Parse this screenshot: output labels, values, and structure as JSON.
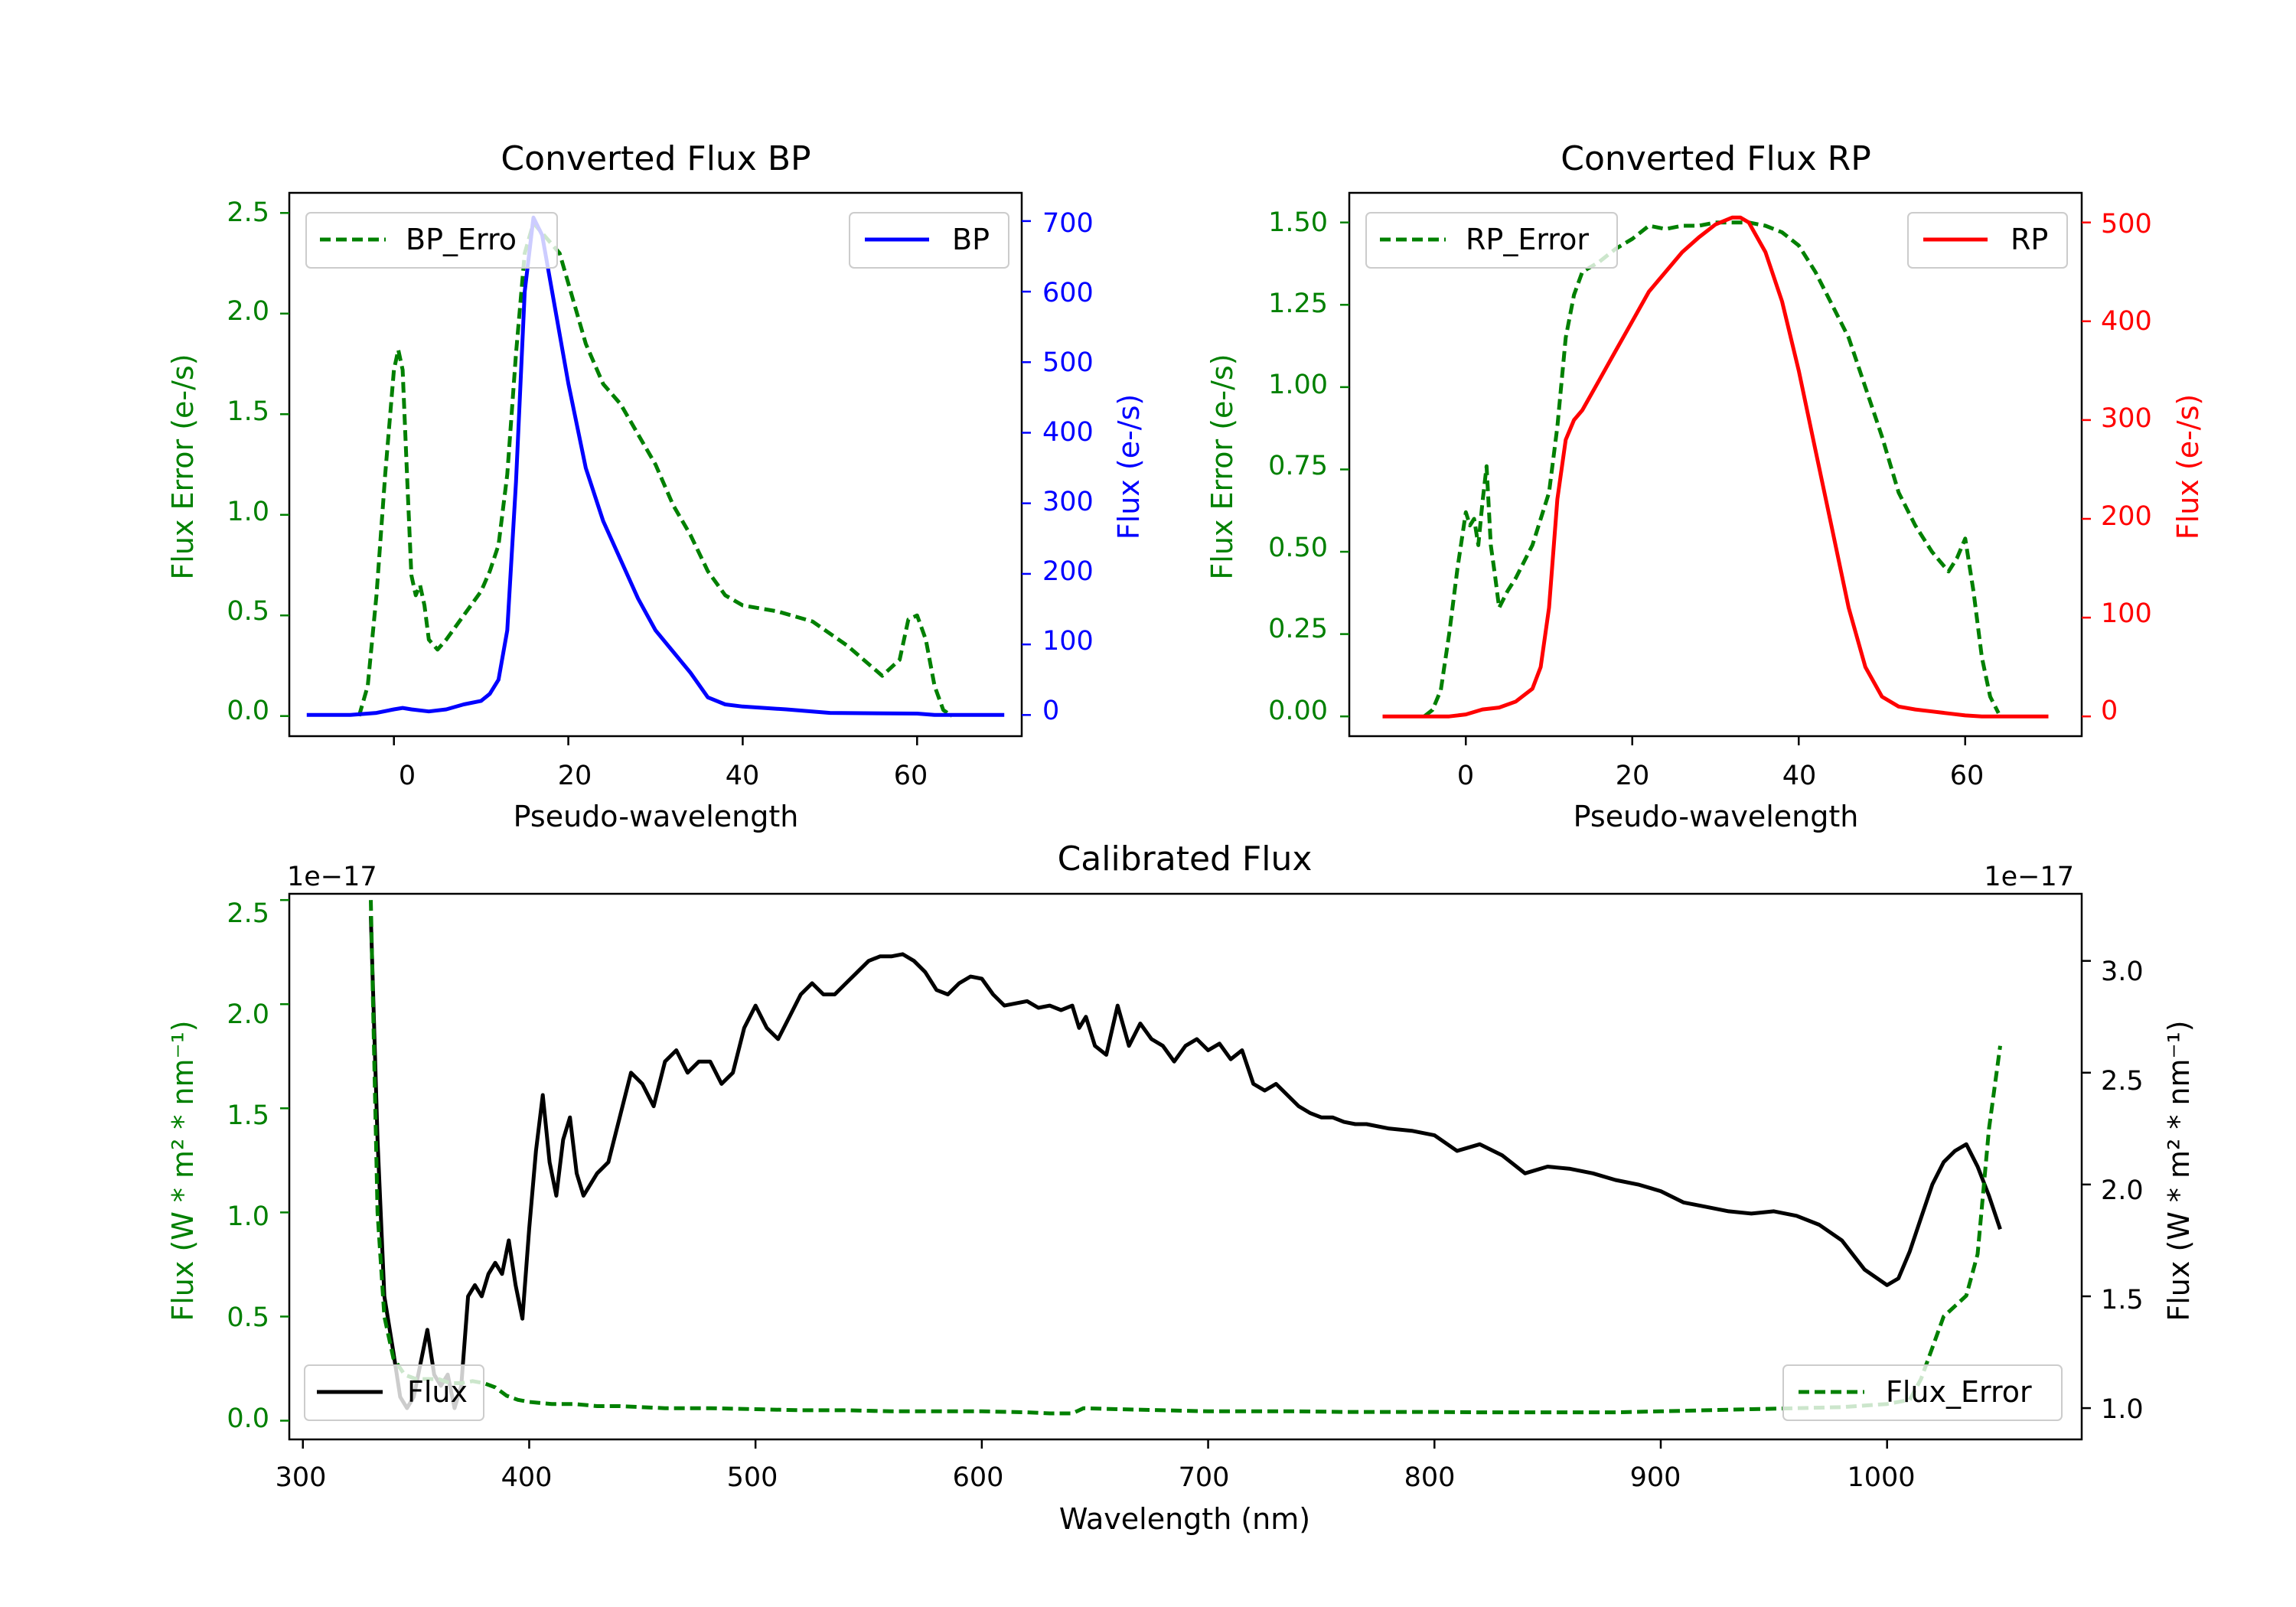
{
  "chart_data": [
    {
      "type": "line",
      "title": "Converted Flux BP",
      "xlabel": "Pseudo-wavelength",
      "ylabel_left": "Flux Error (e-/s)",
      "ylabel_right": "Flux (e-/s)",
      "xlim": [
        -12,
        72
      ],
      "ylim_left": [
        -0.1,
        2.6
      ],
      "ylim_right": [
        -30,
        740
      ],
      "xticks": [
        "0",
        "20",
        "40",
        "60"
      ],
      "yticks_left": [
        "0.0",
        "0.5",
        "1.0",
        "1.5",
        "2.0",
        "2.5"
      ],
      "yticks_right": [
        "0",
        "100",
        "200",
        "300",
        "400",
        "500",
        "600",
        "700"
      ],
      "colors": {
        "error": "#008000",
        "flux": "#0000ff",
        "axis_left": "#008000",
        "axis_right": "#0000ff"
      },
      "series": [
        {
          "name": "BP_Error",
          "axis": "left",
          "style": "dashed",
          "color": "#008000",
          "x": [
            -4,
            -3,
            -2,
            -1,
            0,
            0.5,
            1,
            1.5,
            2,
            2.5,
            3,
            3.5,
            4,
            5,
            6,
            8,
            10,
            11,
            12,
            13,
            14,
            15,
            16,
            17,
            18,
            19,
            20,
            22,
            24,
            26,
            28,
            30,
            32,
            34,
            36,
            38,
            40,
            44,
            48,
            52,
            56,
            58,
            59,
            60,
            61,
            62,
            63,
            64
          ],
          "y": [
            0.0,
            0.15,
            0.6,
            1.2,
            1.72,
            1.82,
            1.72,
            1.2,
            0.7,
            0.6,
            0.65,
            0.55,
            0.38,
            0.33,
            0.38,
            0.5,
            0.62,
            0.72,
            0.85,
            1.2,
            1.8,
            2.3,
            2.45,
            2.4,
            2.35,
            2.3,
            2.15,
            1.85,
            1.65,
            1.55,
            1.4,
            1.25,
            1.05,
            0.9,
            0.72,
            0.6,
            0.55,
            0.52,
            0.47,
            0.35,
            0.2,
            0.28,
            0.48,
            0.5,
            0.38,
            0.15,
            0.03,
            0.0
          ]
        },
        {
          "name": "BP",
          "axis": "right",
          "style": "solid",
          "color": "#0000ff",
          "x": [
            -10,
            -5,
            -2,
            0,
            1,
            2,
            4,
            6,
            8,
            10,
            11,
            12,
            13,
            14,
            15,
            16,
            17,
            18,
            20,
            22,
            24,
            26,
            28,
            30,
            32,
            34,
            36,
            38,
            40,
            45,
            50,
            60,
            62,
            64,
            66,
            70
          ],
          "y": [
            0,
            0,
            3,
            8,
            10,
            8,
            5,
            8,
            15,
            20,
            30,
            50,
            120,
            330,
            600,
            705,
            680,
            610,
            470,
            350,
            275,
            220,
            165,
            120,
            90,
            60,
            25,
            15,
            12,
            8,
            3,
            2,
            0,
            0,
            0,
            0
          ]
        }
      ],
      "legend": [
        {
          "label": "BP_Erro",
          "position": "upper-left"
        },
        {
          "label": "BP",
          "position": "upper-right"
        }
      ]
    },
    {
      "type": "line",
      "title": "Converted Flux RP",
      "xlabel": "Pseudo-wavelength",
      "ylabel_left": "Flux Error (e-/s)",
      "ylabel_right": "Flux (e-/s)",
      "xlim": [
        -14,
        74
      ],
      "ylim_left": [
        -0.06,
        1.59
      ],
      "ylim_right": [
        -20,
        530
      ],
      "xticks": [
        "0",
        "20",
        "40",
        "60"
      ],
      "yticks_left": [
        "0.00",
        "0.25",
        "0.50",
        "0.75",
        "1.00",
        "1.25",
        "1.50"
      ],
      "yticks_right": [
        "0",
        "100",
        "200",
        "300",
        "400",
        "500"
      ],
      "colors": {
        "error": "#008000",
        "flux": "#ff0000",
        "axis_left": "#008000",
        "axis_right": "#ff0000"
      },
      "series": [
        {
          "name": "RP_Error",
          "axis": "left",
          "style": "dashed",
          "color": "#008000",
          "x": [
            -5,
            -4,
            -3,
            -2,
            -1,
            0,
            0.5,
            1,
            1.5,
            2,
            2.5,
            3,
            3.5,
            4,
            5,
            6,
            8,
            10,
            11,
            12,
            13,
            14,
            16,
            18,
            20,
            22,
            24,
            26,
            28,
            30,
            32,
            34,
            36,
            38,
            40,
            42,
            44,
            46,
            48,
            50,
            52,
            54,
            56,
            57,
            58,
            59,
            60,
            61,
            62,
            63,
            64
          ],
          "y": [
            0.0,
            0.02,
            0.08,
            0.25,
            0.45,
            0.62,
            0.58,
            0.6,
            0.52,
            0.65,
            0.76,
            0.52,
            0.43,
            0.33,
            0.38,
            0.42,
            0.52,
            0.68,
            0.88,
            1.15,
            1.28,
            1.35,
            1.38,
            1.42,
            1.45,
            1.49,
            1.48,
            1.49,
            1.49,
            1.5,
            1.5,
            1.5,
            1.49,
            1.47,
            1.43,
            1.35,
            1.25,
            1.15,
            1.0,
            0.85,
            0.68,
            0.58,
            0.5,
            0.47,
            0.44,
            0.48,
            0.54,
            0.38,
            0.18,
            0.06,
            0.01
          ]
        },
        {
          "name": "RP",
          "axis": "right",
          "style": "solid",
          "color": "#ff0000",
          "x": [
            -10,
            -4,
            -2,
            0,
            2,
            4,
            6,
            8,
            9,
            10,
            11,
            12,
            13,
            14,
            16,
            18,
            20,
            22,
            24,
            26,
            28,
            30,
            32,
            33,
            34,
            36,
            38,
            40,
            42,
            44,
            46,
            48,
            50,
            52,
            54,
            56,
            58,
            60,
            62,
            64,
            66,
            70
          ],
          "y": [
            0,
            0,
            0,
            2,
            7,
            9,
            15,
            28,
            50,
            110,
            220,
            280,
            300,
            310,
            340,
            370,
            400,
            430,
            450,
            470,
            485,
            498,
            505,
            505,
            500,
            470,
            420,
            350,
            270,
            190,
            110,
            50,
            20,
            10,
            7,
            5,
            3,
            1,
            0,
            0,
            0,
            0
          ]
        }
      ],
      "legend": [
        {
          "label": "RP_Error",
          "position": "upper-left"
        },
        {
          "label": "RP",
          "position": "upper-right"
        }
      ]
    },
    {
      "type": "line",
      "title": "Calibrated Flux",
      "xlabel": "Wavelength (nm)",
      "ylabel_left": "Flux (W * m² * nm⁻¹)",
      "ylabel_right": "Flux (W * m² * nm⁻¹)",
      "offset_left": "1e−17",
      "offset_right": "1e−17",
      "xlim": [
        294,
        1086
      ],
      "ylim_left": [
        -0.09,
        2.53
      ],
      "ylim_right": [
        0.86,
        3.3
      ],
      "xticks": [
        "300",
        "400",
        "500",
        "600",
        "700",
        "800",
        "900",
        "1000"
      ],
      "yticks_left": [
        "0.0",
        "0.5",
        "1.0",
        "1.5",
        "2.0",
        "2.5"
      ],
      "yticks_right": [
        "1.0",
        "1.5",
        "2.0",
        "2.5",
        "3.0"
      ],
      "colors": {
        "error": "#008000",
        "flux": "#000000",
        "axis_left": "#008000",
        "axis_right": "#000000"
      },
      "series": [
        {
          "name": "Flux",
          "axis": "right",
          "style": "solid",
          "color": "#000000",
          "x": [
            330,
            333,
            336,
            340,
            343,
            346,
            349,
            352,
            355,
            358,
            361,
            364,
            367,
            370,
            373,
            376,
            379,
            382,
            385,
            388,
            391,
            394,
            397,
            400,
            403,
            406,
            409,
            412,
            415,
            418,
            421,
            424,
            427,
            430,
            435,
            440,
            445,
            450,
            455,
            460,
            465,
            470,
            475,
            480,
            485,
            490,
            495,
            500,
            505,
            510,
            515,
            520,
            525,
            530,
            535,
            540,
            545,
            550,
            555,
            560,
            565,
            570,
            575,
            580,
            585,
            590,
            595,
            600,
            605,
            610,
            615,
            620,
            625,
            630,
            635,
            640,
            643,
            646,
            650,
            655,
            660,
            665,
            670,
            675,
            680,
            685,
            690,
            695,
            700,
            705,
            710,
            715,
            720,
            725,
            730,
            735,
            740,
            745,
            750,
            755,
            760,
            765,
            770,
            780,
            790,
            800,
            810,
            820,
            830,
            840,
            850,
            860,
            870,
            880,
            890,
            900,
            910,
            920,
            930,
            940,
            950,
            960,
            970,
            980,
            990,
            1000,
            1005,
            1010,
            1015,
            1020,
            1025,
            1030,
            1035,
            1040,
            1045,
            1050
          ],
          "y": [
            3.2,
            2.2,
            1.5,
            1.25,
            1.05,
            1.0,
            1.05,
            1.2,
            1.35,
            1.15,
            1.1,
            1.15,
            1.0,
            1.1,
            1.5,
            1.55,
            1.5,
            1.6,
            1.65,
            1.6,
            1.75,
            1.55,
            1.4,
            1.8,
            2.15,
            2.4,
            2.1,
            1.95,
            2.2,
            2.3,
            2.05,
            1.95,
            2.0,
            2.05,
            2.1,
            2.3,
            2.5,
            2.45,
            2.35,
            2.55,
            2.6,
            2.5,
            2.55,
            2.55,
            2.45,
            2.5,
            2.7,
            2.8,
            2.7,
            2.65,
            2.75,
            2.85,
            2.9,
            2.85,
            2.85,
            2.9,
            2.95,
            3.0,
            3.02,
            3.02,
            3.03,
            3.0,
            2.95,
            2.87,
            2.85,
            2.9,
            2.93,
            2.92,
            2.85,
            2.8,
            2.81,
            2.82,
            2.79,
            2.8,
            2.78,
            2.8,
            2.7,
            2.75,
            2.62,
            2.58,
            2.8,
            2.62,
            2.72,
            2.65,
            2.62,
            2.55,
            2.62,
            2.65,
            2.6,
            2.63,
            2.56,
            2.6,
            2.45,
            2.42,
            2.45,
            2.4,
            2.35,
            2.32,
            2.3,
            2.3,
            2.28,
            2.27,
            2.27,
            2.25,
            2.24,
            2.22,
            2.15,
            2.18,
            2.13,
            2.05,
            2.08,
            2.07,
            2.05,
            2.02,
            2.0,
            1.97,
            1.92,
            1.9,
            1.88,
            1.87,
            1.88,
            1.86,
            1.82,
            1.75,
            1.62,
            1.55,
            1.58,
            1.7,
            1.85,
            2.0,
            2.1,
            2.15,
            2.18,
            2.08,
            1.95,
            1.8
          ]
        },
        {
          "name": "Flux_Error",
          "axis": "left",
          "style": "dashed",
          "color": "#008000",
          "x": [
            330,
            333,
            336,
            340,
            345,
            350,
            355,
            360,
            365,
            370,
            375,
            380,
            385,
            390,
            395,
            400,
            410,
            420,
            430,
            440,
            460,
            480,
            500,
            520,
            540,
            560,
            580,
            600,
            620,
            630,
            640,
            645,
            660,
            680,
            700,
            720,
            740,
            760,
            780,
            800,
            820,
            840,
            860,
            880,
            900,
            920,
            940,
            960,
            980,
            1000,
            1010,
            1015,
            1020,
            1025,
            1030,
            1035,
            1040,
            1045,
            1050
          ],
          "y": [
            2.5,
            1.0,
            0.5,
            0.3,
            0.22,
            0.2,
            0.2,
            0.2,
            0.18,
            0.18,
            0.19,
            0.18,
            0.16,
            0.12,
            0.1,
            0.09,
            0.08,
            0.08,
            0.07,
            0.07,
            0.06,
            0.06,
            0.055,
            0.05,
            0.05,
            0.045,
            0.045,
            0.045,
            0.04,
            0.035,
            0.035,
            0.06,
            0.055,
            0.05,
            0.045,
            0.045,
            0.045,
            0.042,
            0.042,
            0.042,
            0.04,
            0.04,
            0.04,
            0.04,
            0.045,
            0.05,
            0.055,
            0.06,
            0.065,
            0.08,
            0.1,
            0.2,
            0.35,
            0.5,
            0.55,
            0.6,
            0.8,
            1.4,
            1.8
          ]
        }
      ],
      "legend": [
        {
          "label": "Flux",
          "position": "lower-left"
        },
        {
          "label": "Flux_Error",
          "position": "lower-right"
        }
      ]
    }
  ]
}
